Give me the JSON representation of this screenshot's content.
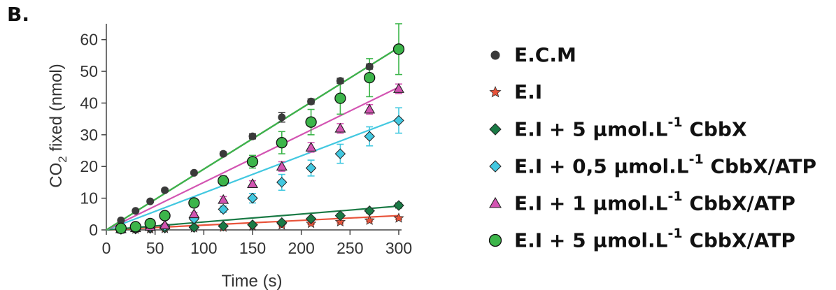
{
  "panel_label": "B.",
  "chart_data": {
    "type": "line",
    "xlabel": "Time (s)",
    "ylabel": "CO2 fixed (nmol)",
    "ylabel_parts": {
      "pre": "CO",
      "sub": "2",
      "post": " fixed (nmol)"
    },
    "xlim": [
      0,
      300
    ],
    "ylim": [
      0,
      65
    ],
    "xticks": [
      0,
      50,
      100,
      150,
      200,
      250,
      300
    ],
    "yticks": [
      0,
      10,
      20,
      30,
      40,
      50,
      60
    ],
    "grid": false,
    "legend_position": "right",
    "series": [
      {
        "name": "E.C.M",
        "legend_pre": "E.C.M",
        "legend_sup": "",
        "legend_post": "",
        "marker": "dot",
        "color": "#3a3a3a",
        "x": [
          15,
          30,
          45,
          60,
          90,
          120,
          150,
          180,
          210,
          240,
          270,
          300
        ],
        "y": [
          3,
          6,
          9,
          12.5,
          18,
          24,
          29.5,
          35.5,
          40.5,
          47,
          51.5,
          57
        ],
        "err": [
          0.3,
          0.3,
          0.4,
          0.5,
          0.5,
          0.6,
          0.8,
          1.5,
          0.8,
          0.8,
          0.8,
          1.0
        ],
        "fit": [
          [
            0,
            0
          ],
          [
            300,
            57.5
          ]
        ]
      },
      {
        "name": "E.I",
        "legend_pre": "E.I",
        "legend_sup": "",
        "legend_post": "",
        "marker": "star",
        "color": "#e8533a",
        "x": [
          15,
          30,
          45,
          60,
          90,
          120,
          150,
          180,
          210,
          240,
          270,
          300
        ],
        "y": [
          0.1,
          0.2,
          0.3,
          0.4,
          0.6,
          0.8,
          1.2,
          1.5,
          2,
          2.5,
          3,
          3.7
        ],
        "err": [
          0.1,
          0.1,
          0.1,
          0.1,
          0.1,
          0.2,
          0.2,
          0.3,
          0.3,
          0.3,
          0.4,
          0.4
        ],
        "fit": [
          [
            0,
            0
          ],
          [
            300,
            4.5
          ]
        ]
      },
      {
        "name": "E.I + 5 µmol.L-1 CbbX",
        "legend_pre": "E.I + 5 µmol.L",
        "legend_sup": "-1",
        "legend_post": " CbbX",
        "marker": "diamond",
        "color": "#1a7a45",
        "x": [
          15,
          30,
          45,
          60,
          90,
          120,
          150,
          180,
          210,
          240,
          270,
          300
        ],
        "y": [
          0.2,
          0.3,
          0.5,
          0.6,
          0.8,
          1.2,
          1.6,
          2.3,
          3.5,
          4.5,
          6,
          7.7
        ],
        "err": [
          0.1,
          0.1,
          0.1,
          0.1,
          0.2,
          0.2,
          0.3,
          0.4,
          0.5,
          0.6,
          0.7,
          0.8
        ],
        "fit": [
          [
            0,
            0
          ],
          [
            300,
            7.5
          ]
        ]
      },
      {
        "name": "E.I + 0,5 µmol.L-1 CbbX/ATP",
        "legend_pre": "E.I + 0,5 µmol.L",
        "legend_sup": "-1",
        "legend_post": " CbbX/ATP",
        "marker": "diamond",
        "color": "#42c8e0",
        "x": [
          15,
          30,
          45,
          60,
          90,
          120,
          150,
          180,
          210,
          240,
          270,
          300
        ],
        "y": [
          0.2,
          0.5,
          0.8,
          1.2,
          3.5,
          6.5,
          10,
          15,
          19.5,
          24,
          29.5,
          34.5
        ],
        "err": [
          0.2,
          0.2,
          0.3,
          0.3,
          0.5,
          1.0,
          1.5,
          2.5,
          2.5,
          3.0,
          3.0,
          4.0
        ],
        "fit": [
          [
            0,
            0
          ],
          [
            300,
            35
          ]
        ]
      },
      {
        "name": "E.I + 1 µmol.L-1 CbbX/ATP",
        "legend_pre": "E.I + 1 µmol.L",
        "legend_sup": "-1",
        "legend_post": " CbbX/ATP",
        "marker": "triangle",
        "color": "#d354b2",
        "x": [
          15,
          30,
          45,
          60,
          90,
          120,
          150,
          180,
          210,
          240,
          270,
          300
        ],
        "y": [
          0.3,
          0.6,
          1,
          1.5,
          5,
          9.5,
          14.5,
          20,
          26,
          32,
          38,
          44.5
        ],
        "err": [
          0.2,
          0.2,
          0.3,
          0.3,
          0.5,
          1.0,
          1.0,
          1.5,
          1.5,
          1.5,
          1.5,
          1.5
        ],
        "fit": [
          [
            0,
            0
          ],
          [
            300,
            45
          ]
        ]
      },
      {
        "name": "E.I + 5 µmol.L-1 CbbX/ATP",
        "legend_pre": "E.I + 5 µmol.L",
        "legend_sup": "-1",
        "legend_post": " CbbX/ATP",
        "marker": "circle",
        "color": "#3cb54a",
        "x": [
          15,
          30,
          45,
          60,
          90,
          120,
          150,
          180,
          210,
          240,
          270,
          300
        ],
        "y": [
          0.5,
          1,
          2,
          4.5,
          8.5,
          15.5,
          21.5,
          27.5,
          34,
          41.5,
          48,
          57
        ],
        "err": [
          0.3,
          0.3,
          0.5,
          0.5,
          1.0,
          1.5,
          2.0,
          3.5,
          4.0,
          5.0,
          6.0,
          8.0
        ],
        "fit": [
          [
            0,
            0
          ],
          [
            300,
            57.5
          ]
        ]
      }
    ]
  }
}
